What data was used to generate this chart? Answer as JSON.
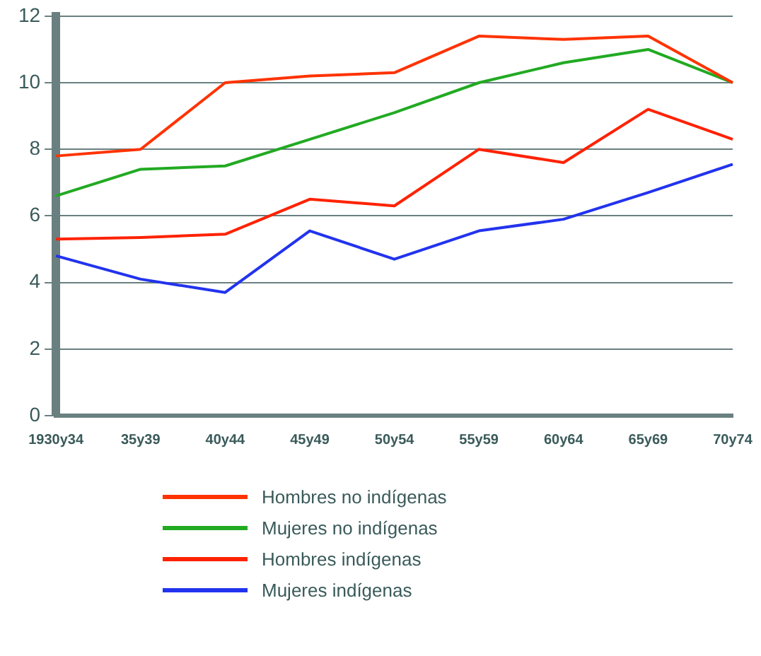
{
  "chart_data": {
    "type": "line",
    "categories": [
      "1930y34",
      "35y39",
      "40y44",
      "45y49",
      "50y54",
      "55y59",
      "60y64",
      "65y69",
      "70y74"
    ],
    "series": [
      {
        "name": "Hombres no indígenas",
        "color": "#ff3300",
        "values": [
          7.8,
          8.0,
          10.0,
          10.2,
          10.3,
          11.4,
          11.3,
          11.4,
          10.0
        ]
      },
      {
        "name": "Mujeres no indígenas",
        "color": "#22aa22",
        "values": [
          6.6,
          7.4,
          7.5,
          8.3,
          9.1,
          10.0,
          10.6,
          11.0,
          10.0
        ]
      },
      {
        "name": "Hombres indígenas",
        "color": "#ff2200",
        "values": [
          5.3,
          5.35,
          5.45,
          6.5,
          6.3,
          8.0,
          7.6,
          9.2,
          8.3
        ]
      },
      {
        "name": "Mujeres indígenas",
        "color": "#2233ee",
        "values": [
          4.8,
          4.1,
          3.7,
          5.55,
          4.7,
          5.55,
          5.9,
          6.7,
          7.55
        ]
      }
    ],
    "ylim": [
      0,
      12
    ],
    "yticks": [
      0,
      2,
      4,
      6,
      8,
      10,
      12
    ],
    "grid": "y",
    "legend": "bottom",
    "marker": "none",
    "line_style": "solid"
  }
}
